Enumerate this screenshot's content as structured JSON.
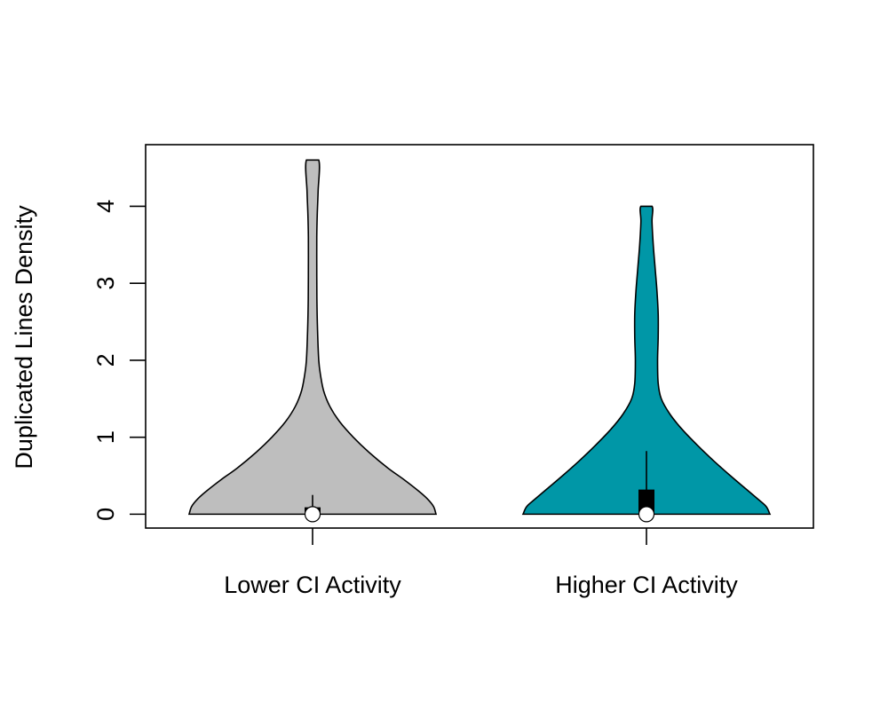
{
  "chart_data": {
    "type": "violin",
    "ylabel": "Duplicated Lines Density",
    "ylim": [
      -0.18,
      4.8
    ],
    "yticks": [
      0,
      1,
      2,
      3,
      4
    ],
    "grid": false,
    "categories": [
      "Lower CI Activity",
      "Higher CI Activity"
    ],
    "series": [
      {
        "category": "Lower CI Activity",
        "color": "#bebebe",
        "min": 0,
        "max": 4.6,
        "box": {
          "q1": 0,
          "median": 0,
          "q3": 0.09,
          "whisker_low": 0,
          "whisker_high": 0.25
        },
        "density": [
          [
            0.0,
            1.0
          ],
          [
            0.1,
            0.98
          ],
          [
            0.2,
            0.93
          ],
          [
            0.3,
            0.86
          ],
          [
            0.45,
            0.74
          ],
          [
            0.6,
            0.61
          ],
          [
            0.8,
            0.46
          ],
          [
            1.0,
            0.33
          ],
          [
            1.2,
            0.22
          ],
          [
            1.4,
            0.14
          ],
          [
            1.6,
            0.09
          ],
          [
            1.8,
            0.065
          ],
          [
            2.0,
            0.05
          ],
          [
            2.4,
            0.04
          ],
          [
            2.8,
            0.035
          ],
          [
            3.2,
            0.034
          ],
          [
            3.6,
            0.034
          ],
          [
            3.9,
            0.038
          ],
          [
            4.2,
            0.045
          ],
          [
            4.6,
            0.05
          ]
        ]
      },
      {
        "category": "Higher CI Activity",
        "color": "#0097a7",
        "min": 0,
        "max": 4.0,
        "box": {
          "q1": 0,
          "median": 0,
          "q3": 0.32,
          "whisker_low": 0,
          "whisker_high": 0.82
        },
        "density": [
          [
            0.0,
            1.0
          ],
          [
            0.1,
            0.97
          ],
          [
            0.2,
            0.9
          ],
          [
            0.35,
            0.79
          ],
          [
            0.5,
            0.68
          ],
          [
            0.7,
            0.54
          ],
          [
            0.9,
            0.41
          ],
          [
            1.1,
            0.29
          ],
          [
            1.3,
            0.19
          ],
          [
            1.5,
            0.12
          ],
          [
            1.7,
            0.095
          ],
          [
            2.0,
            0.09
          ],
          [
            2.3,
            0.095
          ],
          [
            2.6,
            0.095
          ],
          [
            2.9,
            0.085
          ],
          [
            3.2,
            0.07
          ],
          [
            3.5,
            0.055
          ],
          [
            3.8,
            0.045
          ],
          [
            4.0,
            0.045
          ]
        ]
      }
    ]
  }
}
